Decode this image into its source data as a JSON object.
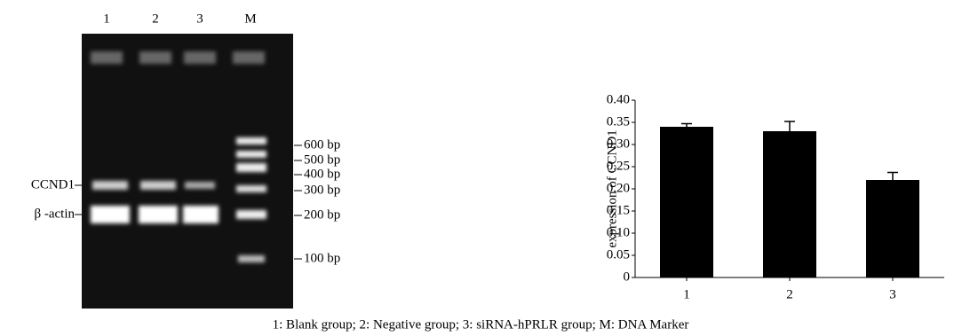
{
  "gel": {
    "lanes": [
      "1",
      "2",
      "3",
      "M"
    ],
    "markers": [
      "600 bp",
      "500 bp",
      "400 bp",
      "300 bp",
      "200 bp",
      "100 bp"
    ],
    "bands": [
      "CCND1",
      "β -actin"
    ]
  },
  "caption": "1: Blank group;  2: Negative group;  3: siRNA-hPRLR group; M: DNA Marker",
  "chart_data": {
    "type": "bar",
    "y_label": "expression of CCND1",
    "categories": [
      "1",
      "2",
      "3"
    ],
    "values": [
      0.34,
      0.33,
      0.22
    ],
    "errors": [
      0.007,
      0.022,
      0.017
    ],
    "color": "#000000",
    "ylim": [
      0,
      0.4
    ],
    "yticks": [
      0,
      0.05,
      {
        "value": 0.1,
        "label": "0.10"
      },
      0.15,
      {
        "value": 0.2,
        "label": "0.20"
      },
      0.25,
      {
        "value": 0.3,
        "label": "0.30"
      },
      0.35,
      {
        "value": 0.4,
        "label": "0.40"
      }
    ]
  }
}
